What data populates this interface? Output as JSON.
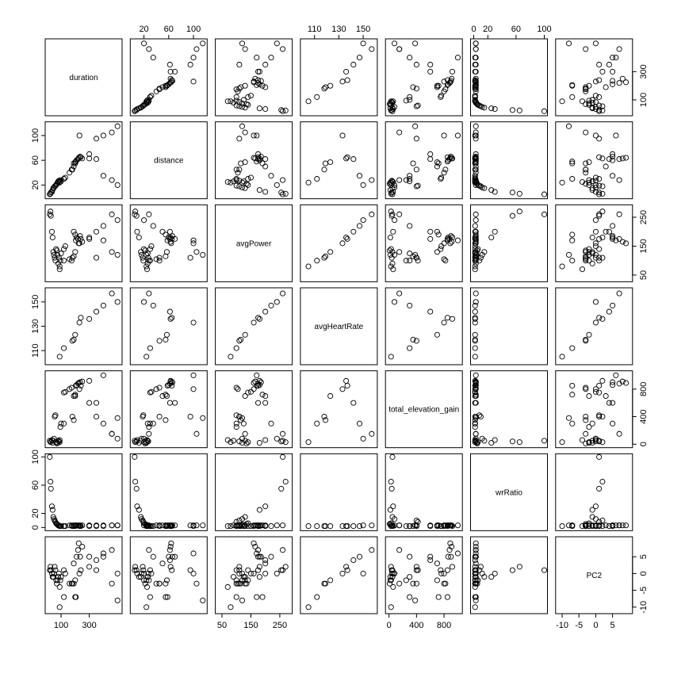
{
  "chart_data": {
    "type": "scatter",
    "kind": "scatterplot-matrix",
    "title": "",
    "variables": [
      "duration",
      "distance",
      "avgPower",
      "avgHeartRate",
      "total_elevation_gain",
      "wrRatio",
      "PC2"
    ],
    "ranges": {
      "duration": [
        10,
        510
      ],
      "distance": [
        3,
        117
      ],
      "avgPower": [
        38,
        282
      ],
      "avgHeartRate": [
        101,
        159
      ],
      "total_elevation_gain": [
        -5,
        1020
      ],
      "wrRatio": [
        0,
        100
      ],
      "PC2": [
        -11,
        10
      ]
    },
    "ticks": {
      "duration": [
        100,
        300
      ],
      "distance": [
        20,
        60,
        100
      ],
      "avgPower": [
        50,
        150,
        250
      ],
      "avgHeartRate": [
        110,
        130,
        150
      ],
      "total_elevation_gain": [
        0,
        400,
        800
      ],
      "wrRatio": [
        0,
        20,
        60,
        100
      ],
      "PC2": [
        -10,
        -5,
        0,
        5
      ]
    },
    "tick_labels": {
      "duration": [
        "100",
        "300"
      ],
      "distance": [
        "20",
        "60",
        "100"
      ],
      "avgPower": [
        "50",
        "150",
        "250"
      ],
      "avgHeartRate": [
        "110",
        "130",
        "150"
      ],
      "total_elevation_gain": [
        "0",
        "400",
        "800"
      ],
      "wrRatio": [
        "0",
        "20",
        "60",
        "100"
      ],
      "PC2": [
        "-10",
        "-5",
        "0",
        "5"
      ]
    },
    "observations": [
      {
        "duration": 20,
        "distance": 5,
        "avgPower": 260,
        "avgHeartRate": null,
        "total_elevation_gain": 50,
        "wrRatio": 100,
        "PC2": 1
      },
      {
        "duration": 25,
        "distance": 6,
        "avgPower": 270,
        "avgHeartRate": null,
        "total_elevation_gain": 30,
        "wrRatio": 65,
        "PC2": 2
      },
      {
        "duration": 28,
        "distance": 8,
        "avgPower": 255,
        "avgHeartRate": null,
        "total_elevation_gain": 40,
        "wrRatio": 55,
        "PC2": 1
      },
      {
        "duration": 35,
        "distance": 9,
        "avgPower": 200,
        "avgHeartRate": null,
        "total_elevation_gain": 60,
        "wrRatio": 30,
        "PC2": 0
      },
      {
        "duration": 40,
        "distance": 12,
        "avgPower": 180,
        "avgHeartRate": null,
        "total_elevation_gain": 20,
        "wrRatio": 25,
        "PC2": -1
      },
      {
        "duration": 45,
        "distance": 15,
        "avgPower": 130,
        "avgHeartRate": null,
        "total_elevation_gain": 50,
        "wrRatio": 15,
        "PC2": -1
      },
      {
        "duration": 50,
        "distance": 16,
        "avgPower": 120,
        "avgHeartRate": null,
        "total_elevation_gain": 80,
        "wrRatio": 12,
        "PC2": 0
      },
      {
        "duration": 55,
        "distance": 18,
        "avgPower": 110,
        "avgHeartRate": null,
        "total_elevation_gain": 400,
        "wrRatio": 10,
        "PC2": 2
      },
      {
        "duration": 60,
        "distance": 19,
        "avgPower": 100,
        "avgHeartRate": null,
        "total_elevation_gain": 420,
        "wrRatio": 8,
        "PC2": 1
      },
      {
        "duration": 65,
        "distance": 20,
        "avgPower": 140,
        "avgHeartRate": null,
        "total_elevation_gain": 30,
        "wrRatio": 6,
        "PC2": -2
      },
      {
        "duration": 70,
        "distance": 22,
        "avgPower": 135,
        "avgHeartRate": null,
        "total_elevation_gain": 10,
        "wrRatio": 5,
        "PC2": -3
      },
      {
        "duration": 75,
        "distance": 24,
        "avgPower": 120,
        "avgHeartRate": null,
        "total_elevation_gain": 20,
        "wrRatio": 4,
        "PC2": -2
      },
      {
        "duration": 80,
        "distance": 26,
        "avgPower": 90,
        "avgHeartRate": null,
        "total_elevation_gain": 50,
        "wrRatio": 3,
        "PC2": -1
      },
      {
        "duration": 85,
        "distance": 27,
        "avgPower": 110,
        "avgHeartRate": null,
        "total_elevation_gain": 40,
        "wrRatio": 3,
        "PC2": 0
      },
      {
        "duration": 90,
        "distance": 25,
        "avgPower": 70,
        "avgHeartRate": null,
        "total_elevation_gain": 60,
        "wrRatio": 2,
        "PC2": -4
      },
      {
        "duration": 95,
        "distance": 28,
        "avgPower": 100,
        "avgHeartRate": null,
        "total_elevation_gain": 250,
        "wrRatio": 2,
        "PC2": -2
      },
      {
        "duration": 100,
        "distance": 26,
        "avgPower": 125,
        "avgHeartRate": null,
        "total_elevation_gain": 300,
        "wrRatio": 2,
        "PC2": -1
      },
      {
        "duration": 120,
        "distance": 30,
        "avgPower": 140,
        "avgHeartRate": null,
        "total_elevation_gain": 750,
        "wrRatio": 2,
        "PC2": 1
      },
      {
        "duration": 130,
        "distance": 32,
        "avgPower": 150,
        "avgHeartRate": null,
        "total_elevation_gain": 760,
        "wrRatio": 2,
        "PC2": 0
      },
      {
        "duration": 160,
        "distance": 40,
        "avgPower": 105,
        "avgHeartRate": null,
        "total_elevation_gain": 800,
        "wrRatio": 3,
        "PC2": -3
      },
      {
        "duration": 175,
        "distance": 45,
        "avgPower": 100,
        "avgHeartRate": null,
        "total_elevation_gain": 820,
        "wrRatio": 3,
        "PC2": -3
      },
      {
        "duration": 190,
        "distance": 50,
        "avgPower": 200,
        "avgHeartRate": null,
        "total_elevation_gain": 700,
        "wrRatio": 3,
        "PC2": 3
      },
      {
        "duration": 200,
        "distance": 55,
        "avgPower": 190,
        "avgHeartRate": null,
        "total_elevation_gain": 720,
        "wrRatio": 3,
        "PC2": -7
      },
      {
        "duration": 205,
        "distance": 58,
        "avgPower": 170,
        "avgHeartRate": null,
        "total_elevation_gain": 850,
        "wrRatio": 3,
        "PC2": -7
      },
      {
        "duration": 210,
        "distance": 60,
        "avgPower": 180,
        "avgHeartRate": null,
        "total_elevation_gain": 860,
        "wrRatio": 3,
        "PC2": 5
      },
      {
        "duration": 220,
        "distance": 62,
        "avgPower": 175,
        "avgHeartRate": null,
        "total_elevation_gain": 880,
        "wrRatio": 3,
        "PC2": 7
      },
      {
        "duration": 225,
        "distance": 64,
        "avgPower": 160,
        "avgHeartRate": null,
        "total_elevation_gain": 890,
        "wrRatio": 3,
        "PC2": 9
      },
      {
        "duration": 235,
        "distance": 66,
        "avgPower": 185,
        "avgHeartRate": null,
        "total_elevation_gain": 900,
        "wrRatio": 3,
        "PC2": 5
      },
      {
        "duration": 250,
        "distance": 63,
        "avgPower": 165,
        "avgHeartRate": null,
        "total_elevation_gain": 910,
        "wrRatio": 3,
        "PC2": 8
      },
      {
        "duration": 300,
        "distance": 70,
        "avgPower": 175,
        "avgHeartRate": null,
        "total_elevation_gain": 600,
        "wrRatio": 3,
        "PC2": 5
      },
      {
        "duration": 350,
        "distance": 95,
        "avgPower": 110,
        "avgHeartRate": null,
        "total_elevation_gain": 400,
        "wrRatio": 3,
        "PC2": 1
      },
      {
        "duration": 400,
        "distance": 100,
        "avgPower": 170,
        "avgHeartRate": null,
        "total_elevation_gain": 1000,
        "wrRatio": 3,
        "PC2": 6
      },
      {
        "duration": 460,
        "distance": 105,
        "avgPower": 130,
        "avgHeartRate": null,
        "total_elevation_gain": 150,
        "wrRatio": 3,
        "PC2": -3
      },
      {
        "duration": 500,
        "distance": 115,
        "avgPower": 120,
        "avgHeartRate": null,
        "total_elevation_gain": 380,
        "wrRatio": 3,
        "PC2": -8
      },
      {
        "duration": 90,
        "distance": 24,
        "avgPower": 80,
        "avgHeartRate": 105,
        "total_elevation_gain": 30,
        "wrRatio": 2,
        "PC2": -10
      },
      {
        "duration": 120,
        "distance": 30,
        "avgPower": 100,
        "avgHeartRate": 112,
        "total_elevation_gain": 300,
        "wrRatio": 2,
        "PC2": -7
      },
      {
        "duration": 180,
        "distance": 45,
        "avgPower": 110,
        "avgHeartRate": 118,
        "total_elevation_gain": 400,
        "wrRatio": 2,
        "PC2": -3
      },
      {
        "duration": 190,
        "distance": 55,
        "avgPower": 115,
        "avgHeartRate": 119,
        "total_elevation_gain": 350,
        "wrRatio": 2,
        "PC2": -3
      },
      {
        "duration": 200,
        "distance": 57,
        "avgPower": 130,
        "avgHeartRate": 123,
        "total_elevation_gain": 700,
        "wrRatio": 2,
        "PC2": -2
      },
      {
        "duration": 230,
        "distance": 100,
        "avgPower": 160,
        "avgHeartRate": 133,
        "total_elevation_gain": 800,
        "wrRatio": 2,
        "PC2": 0
      },
      {
        "duration": 240,
        "distance": 65,
        "avgPower": 175,
        "avgHeartRate": 137,
        "total_elevation_gain": 850,
        "wrRatio": 2,
        "PC2": 1
      },
      {
        "duration": 300,
        "distance": 63,
        "avgPower": 180,
        "avgHeartRate": 136,
        "total_elevation_gain": 920,
        "wrRatio": 2,
        "PC2": 2
      },
      {
        "duration": 350,
        "distance": 62,
        "avgPower": 200,
        "avgHeartRate": 142,
        "total_elevation_gain": 600,
        "wrRatio": 2,
        "PC2": 4
      },
      {
        "duration": 400,
        "distance": 35,
        "avgPower": 220,
        "avgHeartRate": 147,
        "total_elevation_gain": 300,
        "wrRatio": 2,
        "PC2": 5
      },
      {
        "duration": 460,
        "distance": 28,
        "avgPower": 260,
        "avgHeartRate": 157,
        "total_elevation_gain": 150,
        "wrRatio": 3,
        "PC2": 7
      },
      {
        "duration": 500,
        "distance": 20,
        "avgPower": 240,
        "avgHeartRate": 150,
        "total_elevation_gain": 80,
        "wrRatio": 3,
        "PC2": 0
      }
    ]
  }
}
